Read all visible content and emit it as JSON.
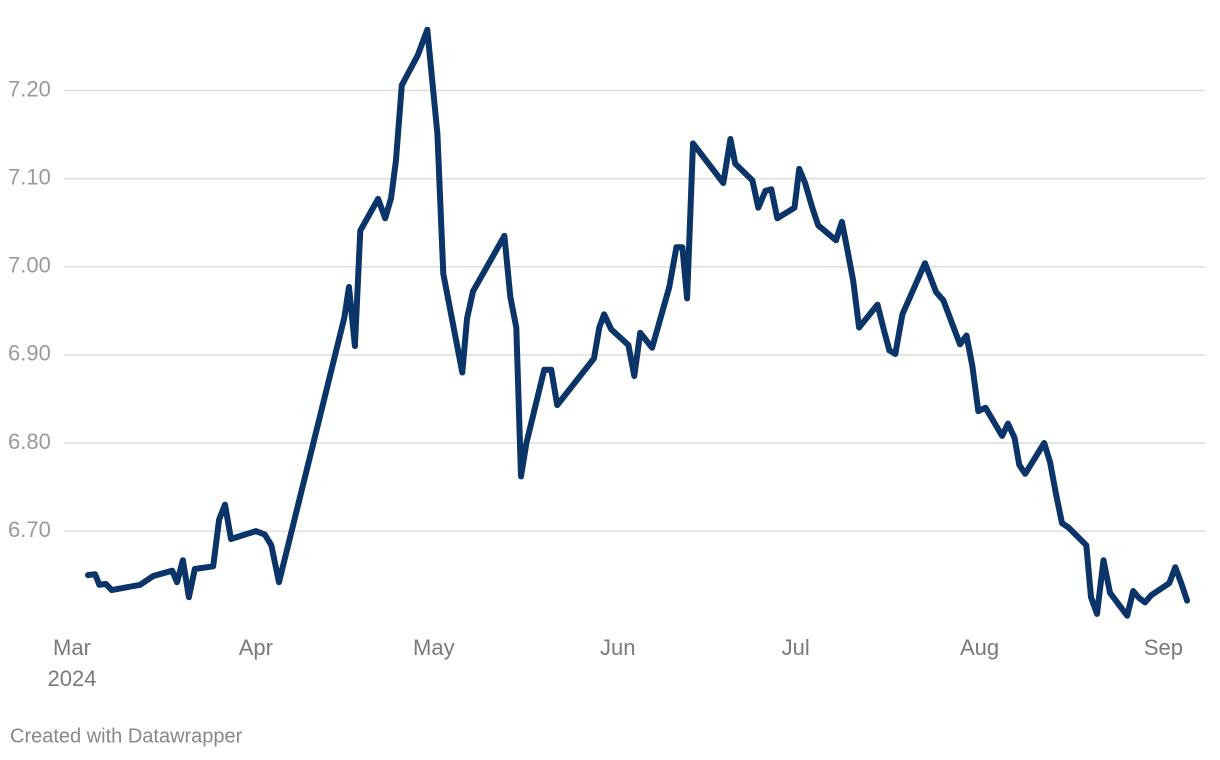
{
  "chart_data": {
    "type": "line",
    "x_year_label": "2024",
    "footer": "Created with Datawrapper",
    "xlim": [
      0,
      190
    ],
    "xticks": [
      {
        "value": 0,
        "label": "Mar"
      },
      {
        "value": 31,
        "label": "Apr"
      },
      {
        "value": 61,
        "label": "May"
      },
      {
        "value": 92,
        "label": "Jun"
      },
      {
        "value": 122,
        "label": "Jul"
      },
      {
        "value": 153,
        "label": "Aug"
      },
      {
        "value": 184,
        "label": "Sep"
      }
    ],
    "ylim": [
      6.59,
      7.28
    ],
    "yticks": [
      {
        "value": 6.7,
        "label": "6.70"
      },
      {
        "value": 6.8,
        "label": "6.80"
      },
      {
        "value": 6.9,
        "label": "6.90"
      },
      {
        "value": 7.0,
        "label": "7.00"
      },
      {
        "value": 7.1,
        "label": "7.10"
      },
      {
        "value": 7.2,
        "label": "7.20"
      }
    ],
    "grid": true,
    "color": "#0b3468",
    "x": [
      2.7,
      3.9,
      4.6,
      5.7,
      6.7,
      11.5,
      13.7,
      16.9,
      17.7,
      18.7,
      19.7,
      20.7,
      23.8,
      24.8,
      25.8,
      26.8,
      31.0,
      32.5,
      33.6,
      34.9,
      45.9,
      46.7,
      47.7,
      48.6,
      51.6,
      52.8,
      53.8,
      54.6,
      55.6,
      58.3,
      59.9,
      61.6,
      62.6,
      65.8,
      66.6,
      67.6,
      72.9,
      73.9,
      74.9,
      75.7,
      76.6,
      79.6,
      80.8,
      81.8,
      88.0,
      88.9,
      89.7,
      90.9,
      93.8,
      94.8,
      95.8,
      97.8,
      100.7,
      101.9,
      102.9,
      103.7,
      104.7,
      109.8,
      111.0,
      111.8,
      114.7,
      115.7,
      116.9,
      117.9,
      118.9,
      121.8,
      122.6,
      123.6,
      124.8,
      125.8,
      128.8,
      129.8,
      130.8,
      131.7,
      132.7,
      135.8,
      137.0,
      137.8,
      138.8,
      140.0,
      143.8,
      145.7,
      146.9,
      149.7,
      150.8,
      151.8,
      152.8,
      154.0,
      156.8,
      157.8,
      158.9,
      159.7,
      160.7,
      163.9,
      164.9,
      165.9,
      166.9,
      168.0,
      171.0,
      171.8,
      172.8,
      173.9,
      175.0,
      177.9,
      178.9,
      179.9,
      180.9,
      181.9,
      185.0,
      186.0,
      187.0,
      188.0
    ],
    "values": [
      6.65,
      6.651,
      6.639,
      6.64,
      6.633,
      6.639,
      6.649,
      6.655,
      6.642,
      6.667,
      6.625,
      6.657,
      6.66,
      6.713,
      6.73,
      6.691,
      6.7,
      6.696,
      6.684,
      6.642,
      6.942,
      6.977,
      6.91,
      7.041,
      7.077,
      7.055,
      7.078,
      7.12,
      7.206,
      7.24,
      7.269,
      7.151,
      6.992,
      6.88,
      6.941,
      6.972,
      7.035,
      6.966,
      6.931,
      6.762,
      6.8,
      6.883,
      6.883,
      6.843,
      6.896,
      6.931,
      6.946,
      6.929,
      6.911,
      6.876,
      6.925,
      6.908,
      6.977,
      7.022,
      7.022,
      6.964,
      7.14,
      7.095,
      7.145,
      7.117,
      7.098,
      7.067,
      7.086,
      7.088,
      7.055,
      7.067,
      7.111,
      7.095,
      7.067,
      7.047,
      7.03,
      7.051,
      7.016,
      6.984,
      6.931,
      6.957,
      6.925,
      6.905,
      6.901,
      6.946,
      7.004,
      6.971,
      6.962,
      6.912,
      6.922,
      6.887,
      6.836,
      6.84,
      6.808,
      6.822,
      6.806,
      6.775,
      6.765,
      6.8,
      6.778,
      6.742,
      6.709,
      6.704,
      6.684,
      6.625,
      6.606,
      6.667,
      6.63,
      6.604,
      6.632,
      6.624,
      6.619,
      6.627,
      6.641,
      6.659,
      6.641,
      6.621
    ]
  }
}
